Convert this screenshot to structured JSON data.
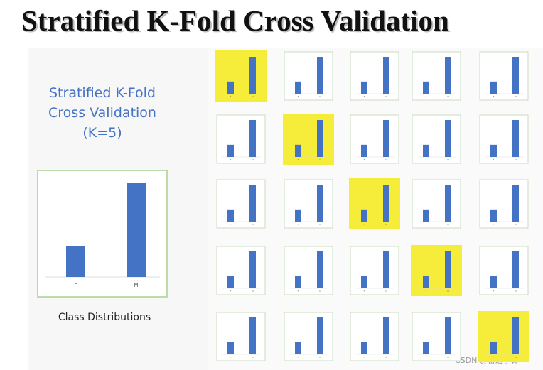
{
  "title": "Stratified K-Fold Cross Validation",
  "left_panel": {
    "heading_lines": [
      "Stratified K-Fold",
      "Cross Validation",
      "(K=5)"
    ],
    "class_distribution": {
      "categories": [
        "F",
        "M"
      ],
      "values": [
        33,
        100
      ],
      "color": "#4472c4"
    },
    "caption": "Class Distributions"
  },
  "watermark": "CSDN @奋进小青"
}
